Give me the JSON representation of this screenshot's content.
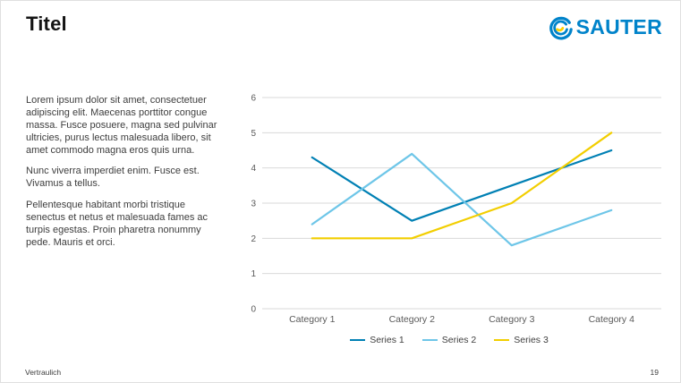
{
  "title": "Titel",
  "logo": {
    "text": "SAUTER",
    "color": "#0083CA",
    "accent": "#FFD100"
  },
  "paragraphs": [
    "Lorem ipsum dolor sit amet, consectetuer adipiscing elit. Maecenas porttitor congue massa. Fusce posuere, magna sed pulvinar ultricies, purus lectus malesuada libero, sit amet commodo magna eros quis urna.",
    "Nunc viverra imperdiet enim. Fusce est. Vivamus a tellus.",
    "Pellentesque habitant morbi tristique senectus et netus et malesuada fames ac turpis egestas. Proin pharetra nonummy pede. Mauris et orci."
  ],
  "chart_data": {
    "type": "line",
    "title": "",
    "xlabel": "",
    "ylabel": "",
    "categories": [
      "Category 1",
      "Category 2",
      "Category 3",
      "Category 4"
    ],
    "series": [
      {
        "name": "Series 1",
        "values": [
          4.3,
          2.5,
          3.5,
          4.5
        ],
        "color": "#0080B4"
      },
      {
        "name": "Series 2",
        "values": [
          2.4,
          4.4,
          1.8,
          2.8
        ],
        "color": "#6EC6E8"
      },
      {
        "name": "Series 3",
        "values": [
          2.0,
          2.0,
          3.0,
          5.0
        ],
        "color": "#F2CE00"
      }
    ],
    "ylim": [
      0,
      6
    ],
    "ytick_step": 1,
    "grid": true,
    "legend_position": "bottom"
  },
  "footer": {
    "left": "Vertraulich",
    "page": "19"
  }
}
